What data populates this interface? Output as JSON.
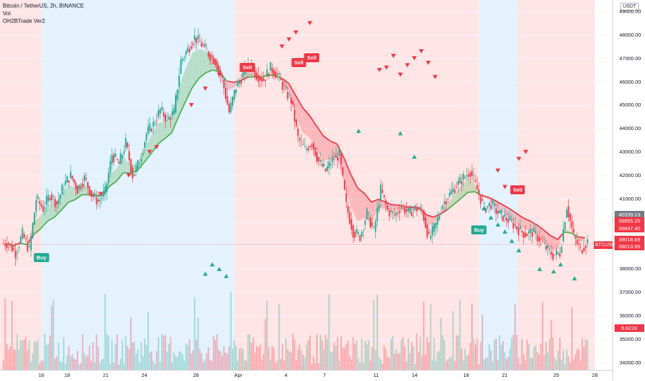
{
  "legend": {
    "symbol": "Bitcoin / TetherUS, 2h, BINANCE",
    "vol": "Vol",
    "indicator": "OH2BTrade Ver2"
  },
  "currency_button": "USDT",
  "symbol_label": "BTCUSDT",
  "price_ticks": [
    "49000.00",
    "48000.00",
    "47000.00",
    "46000.00",
    "45000.00",
    "44000.00",
    "43000.00",
    "42000.00",
    "41000.00",
    "40000.00",
    "39000.00",
    "38000.00",
    "37000.00",
    "36000.00",
    "35000.00",
    "34000.00"
  ],
  "time_ticks": [
    "16",
    "18",
    "21",
    "24",
    "28",
    "Apr",
    "4",
    "7",
    "11",
    "14",
    "18",
    "21",
    "25",
    "28"
  ],
  "price_tags": [
    {
      "text": "40339.13",
      "color": "#787b86",
      "price": 40339
    },
    {
      "text": "39855.25",
      "color": "#f23645",
      "price": 40060
    },
    {
      "text": "39847.40",
      "color": "#f23645",
      "price": 39740
    },
    {
      "text": "39018.69",
      "color": "#f23645",
      "price": 39280
    },
    {
      "text": "39013.99",
      "color": "#f23645",
      "price": 38970
    }
  ],
  "volume_tag": "9.622K",
  "colors": {
    "up": "#22ab94",
    "down": "#f23645",
    "bg_blue": "#e3f2fd",
    "bg_red": "#ffe5e5",
    "ema_green": "#4caf50",
    "ema_red": "#f23645",
    "step": "#555555"
  },
  "signals": [
    {
      "type": "Buy",
      "label": "Buy",
      "date": "16",
      "price": 38500
    },
    {
      "type": "Sell",
      "label": "Sell",
      "date": "Apr 1",
      "price": 46650
    },
    {
      "type": "Sell",
      "label": "Sell",
      "date": "Apr 5",
      "price": 46850
    },
    {
      "type": "Sell",
      "label": "Sell",
      "date": "Apr 6",
      "price": 47050
    },
    {
      "type": "Buy",
      "label": "Buy",
      "date": "Apr 19",
      "price": 39700
    },
    {
      "type": "Sell",
      "label": "Sell",
      "date": "Apr 22",
      "price": 41400
    }
  ],
  "chart_data": {
    "type": "candlestick",
    "timeframe": "2h",
    "ylim": [
      33700,
      49500
    ],
    "x_start": "Mar 13",
    "x_end": "Apr 28",
    "regimes": [
      {
        "from": "Mar 13",
        "to": "Mar 16",
        "trend": "bear"
      },
      {
        "from": "Mar 16",
        "to": "Mar 31",
        "trend": "bull"
      },
      {
        "from": "Mar 31",
        "to": "Apr 19",
        "trend": "bear"
      },
      {
        "from": "Apr 19",
        "to": "Apr 22",
        "trend": "bull"
      },
      {
        "from": "Apr 22",
        "to": "Apr 28",
        "trend": "bear"
      }
    ],
    "price_path": [
      [
        0,
        39100
      ],
      [
        1,
        38700
      ],
      [
        2,
        39500
      ],
      [
        3,
        38800
      ],
      [
        4,
        41000
      ],
      [
        5,
        40600
      ],
      [
        6,
        41200
      ],
      [
        7,
        40800
      ],
      [
        8,
        41600
      ],
      [
        9,
        42000
      ],
      [
        10,
        41400
      ],
      [
        11,
        41900
      ],
      [
        12,
        41200
      ],
      [
        13,
        40900
      ],
      [
        14,
        41300
      ],
      [
        15,
        42900
      ],
      [
        16,
        42500
      ],
      [
        17,
        43400
      ],
      [
        18,
        42000
      ],
      [
        19,
        42600
      ],
      [
        20,
        43800
      ],
      [
        21,
        44200
      ],
      [
        22,
        44800
      ],
      [
        23,
        44400
      ],
      [
        24,
        44700
      ],
      [
        25,
        46900
      ],
      [
        26,
        47400
      ],
      [
        27,
        47900
      ],
      [
        28,
        47600
      ],
      [
        29,
        47200
      ],
      [
        30,
        46900
      ],
      [
        31,
        46100
      ],
      [
        32,
        44700
      ],
      [
        33,
        45800
      ],
      [
        34,
        46300
      ],
      [
        35,
        46700
      ],
      [
        36,
        46300
      ],
      [
        37,
        46100
      ],
      [
        38,
        46600
      ],
      [
        39,
        46300
      ],
      [
        40,
        45700
      ],
      [
        41,
        45200
      ],
      [
        42,
        43600
      ],
      [
        43,
        43100
      ],
      [
        44,
        43400
      ],
      [
        45,
        42600
      ],
      [
        46,
        42200
      ],
      [
        47,
        42700
      ],
      [
        48,
        42900
      ],
      [
        49,
        40700
      ],
      [
        50,
        39600
      ],
      [
        51,
        39400
      ],
      [
        52,
        40400
      ],
      [
        53,
        39600
      ],
      [
        54,
        41400
      ],
      [
        55,
        40500
      ],
      [
        56,
        40300
      ],
      [
        57,
        40700
      ],
      [
        58,
        40400
      ],
      [
        59,
        40600
      ],
      [
        60,
        40500
      ],
      [
        61,
        39300
      ],
      [
        62,
        39900
      ],
      [
        63,
        40800
      ],
      [
        64,
        41200
      ],
      [
        65,
        41600
      ],
      [
        66,
        41900
      ],
      [
        67,
        42200
      ],
      [
        68,
        41400
      ],
      [
        69,
        40600
      ],
      [
        70,
        40800
      ],
      [
        71,
        40400
      ],
      [
        72,
        40200
      ],
      [
        73,
        40000
      ],
      [
        74,
        39700
      ],
      [
        75,
        39500
      ],
      [
        76,
        39600
      ],
      [
        77,
        39300
      ],
      [
        78,
        38900
      ],
      [
        79,
        38600
      ],
      [
        80,
        38700
      ],
      [
        81,
        40700
      ],
      [
        82,
        39400
      ],
      [
        83,
        38800
      ],
      [
        84,
        39200
      ]
    ],
    "candle_count": 85
  }
}
